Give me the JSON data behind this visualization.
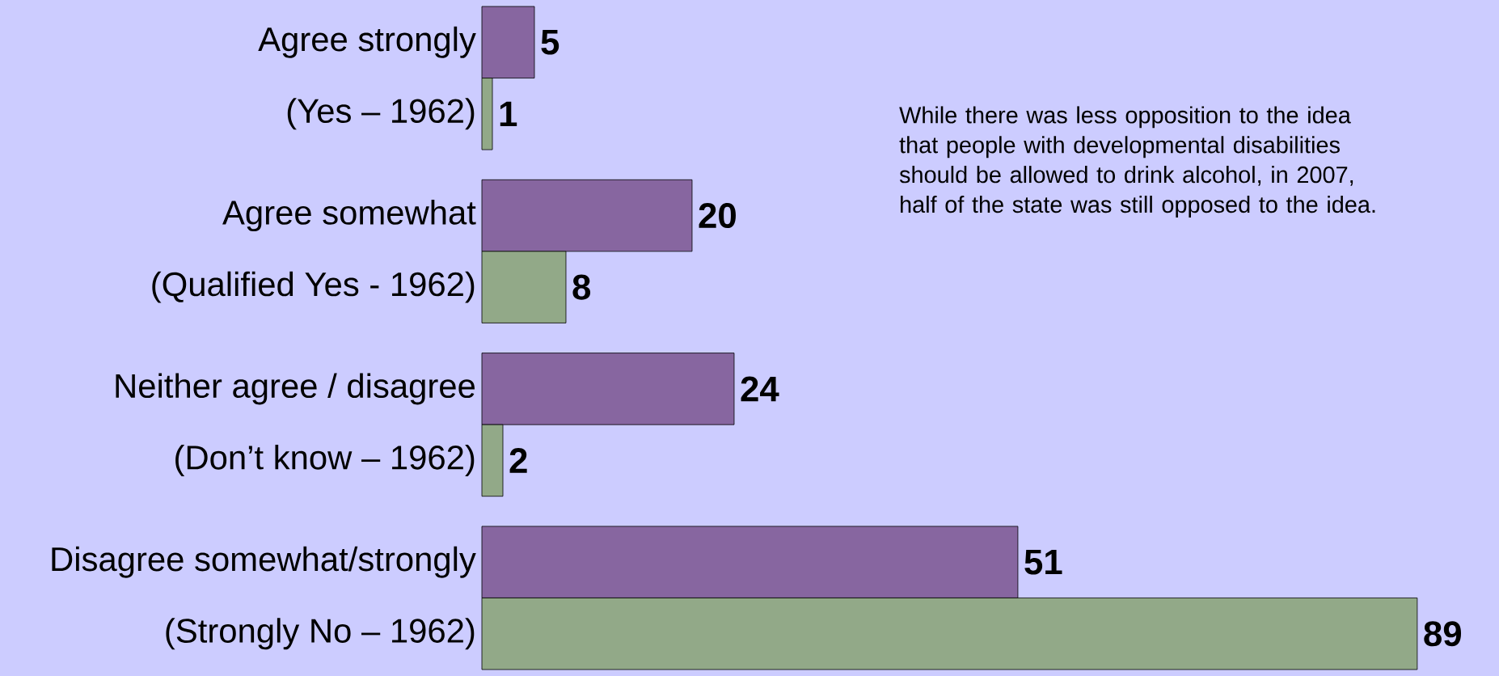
{
  "chart_data": {
    "type": "bar",
    "orientation": "horizontal",
    "categories": [
      "Agree strongly",
      "(Yes – 1962)",
      "Agree somewhat",
      "(Qualified Yes - 1962)",
      "Neither agree / disagree",
      "(Don’t know – 1962)",
      "Disagree somewhat/strongly",
      "(Strongly No – 1962)"
    ],
    "values": [
      5,
      1,
      20,
      8,
      24,
      2,
      51,
      89
    ],
    "colors": [
      "#8766a0",
      "#92a988",
      "#8766a0",
      "#92a988",
      "#8766a0",
      "#92a988",
      "#8766a0",
      "#92a988"
    ],
    "data_labels": true,
    "annotations": [
      "While there was less opposition to the idea that people with developmental disabilities should be allowed to drink alcohol, in 2007, half of the state was still opposed to the idea."
    ]
  }
}
